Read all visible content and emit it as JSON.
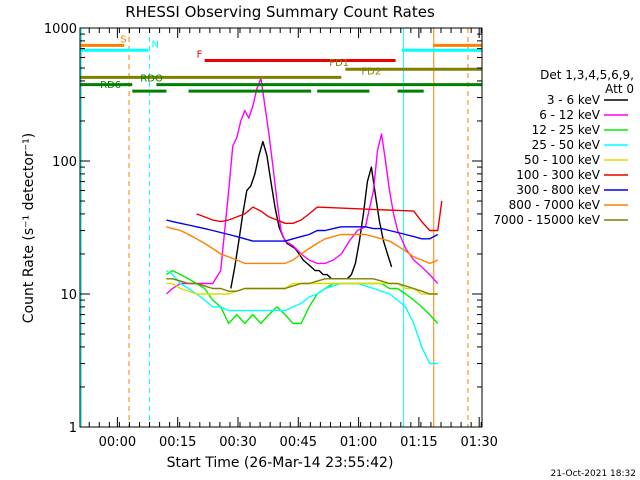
{
  "chart_data": {
    "type": "line",
    "title": "RHESSI Observing Summary Count Rates",
    "xlabel": "Start Time (26-Mar-14 23:55:42)",
    "ylabel": "Count Rate (s⁻¹ detector⁻¹)",
    "y_scale": "log",
    "ylim": [
      1,
      1000
    ],
    "xlim": [
      -5,
      95
    ],
    "x_unit": "minutes after 23:55:42",
    "y_ticks": [
      {
        "value": 1,
        "label": "1"
      },
      {
        "value": 10,
        "label": "10"
      },
      {
        "value": 100,
        "label": "100"
      },
      {
        "value": 1000,
        "label": "1000"
      }
    ],
    "x_ticks": [
      {
        "value": 4.3,
        "label": "00:00"
      },
      {
        "value": 19.3,
        "label": "00:15"
      },
      {
        "value": 34.3,
        "label": "00:30"
      },
      {
        "value": 49.3,
        "label": "00:45"
      },
      {
        "value": 64.3,
        "label": "01:00"
      },
      {
        "value": 79.3,
        "label": "01:15"
      },
      {
        "value": 94.3,
        "label": "01:30"
      }
    ],
    "legend": {
      "header": [
        "Det 1,3,4,5,6,9,",
        "Att 0"
      ],
      "placement": "right",
      "entries": [
        {
          "label": "3 - 6 keV",
          "color": "#000000"
        },
        {
          "label": "6 - 12 keV",
          "color": "#ff00ff"
        },
        {
          "label": "12 - 25 keV",
          "color": "#00ee00"
        },
        {
          "label": "25 - 50 keV",
          "color": "#00ffff"
        },
        {
          "label": "50 - 100 keV",
          "color": "#dddd00"
        },
        {
          "label": "100 - 300 keV",
          "color": "#ee0000"
        },
        {
          "label": "300 - 800 keV",
          "color": "#0000ee"
        },
        {
          "label": "800 - 7000 keV",
          "color": "#ff7f00"
        },
        {
          "label": "7000 - 15000 keV",
          "color": "#808000"
        }
      ]
    },
    "series": [
      {
        "name": "3 - 6 keV",
        "color": "#000000",
        "x": [
          32.5,
          33.5,
          34.5,
          35.5,
          36.5,
          37.5,
          38.5,
          39.5,
          40.5,
          41.5,
          42.5,
          43.5,
          44.5,
          45.5,
          46.5,
          47.5,
          48.5,
          49.5,
          50.5,
          51.5,
          52.5,
          53.5,
          54.5,
          55.5,
          56.5,
          57.5,
          58.5,
          59.5,
          60.5,
          61.5,
          62.5,
          63.5,
          64.5,
          65.5,
          66.5,
          67.5,
          68.5,
          69.5,
          70.5,
          71.5,
          72.5
        ],
        "y": [
          11,
          16,
          25,
          40,
          60,
          65,
          80,
          110,
          140,
          110,
          70,
          45,
          32,
          27,
          24,
          23,
          22,
          20,
          18,
          17,
          16,
          15,
          15,
          14,
          14,
          13,
          13,
          13,
          13,
          13,
          14,
          17,
          25,
          40,
          70,
          90,
          55,
          35,
          25,
          20,
          16
        ]
      },
      {
        "name": "6 - 12 keV",
        "color": "#ff00ff",
        "x": [
          16.5,
          18,
          20,
          22,
          24,
          26,
          28,
          30,
          31,
          32,
          33,
          34,
          35,
          36,
          37,
          38,
          39,
          40,
          41,
          42,
          43,
          44,
          45,
          46,
          47,
          48,
          50,
          52,
          54,
          56,
          58,
          60,
          62,
          64,
          66,
          68,
          69,
          70,
          71,
          72,
          73,
          74,
          75,
          76,
          78,
          80,
          82,
          84
        ],
        "y": [
          10,
          11,
          12,
          12,
          12,
          12,
          12,
          15,
          30,
          60,
          130,
          150,
          200,
          240,
          210,
          260,
          350,
          420,
          260,
          160,
          90,
          50,
          30,
          25,
          24,
          23,
          20,
          18,
          17,
          17,
          18,
          20,
          25,
          30,
          32,
          60,
          120,
          160,
          100,
          60,
          40,
          30,
          26,
          22,
          18,
          16,
          14,
          12
        ]
      },
      {
        "name": "12 - 25 keV",
        "color": "#00ee00",
        "x": [
          16.5,
          18,
          20,
          22,
          24,
          26,
          28,
          30,
          32,
          34,
          36,
          38,
          40,
          42,
          44,
          46,
          48,
          50,
          52,
          54,
          56,
          58,
          60,
          62,
          64,
          66,
          68,
          70,
          72,
          74,
          76,
          78,
          80,
          82,
          84
        ],
        "y": [
          14,
          15,
          14,
          13,
          12,
          11,
          9,
          8,
          6,
          7,
          6,
          7,
          6,
          7,
          8,
          7,
          6,
          6,
          8,
          10,
          11,
          12,
          12,
          12,
          12,
          12,
          12,
          12,
          11,
          11,
          10,
          9,
          8,
          7,
          6
        ]
      },
      {
        "name": "25 - 50 keV",
        "color": "#00ffff",
        "x": [
          16.5,
          18,
          20,
          22,
          24,
          26,
          28,
          30,
          32,
          34,
          36,
          38,
          40,
          42,
          44,
          46,
          48,
          50,
          52,
          54,
          56,
          58,
          60,
          62,
          64,
          66,
          68,
          70,
          72,
          74,
          76,
          78,
          80,
          82,
          84
        ],
        "y": [
          15,
          14,
          12,
          11,
          10,
          9,
          8,
          8,
          7.5,
          7.5,
          7.5,
          7.5,
          7.5,
          7.5,
          7.5,
          7.5,
          8,
          8.5,
          9.5,
          10,
          11,
          11.5,
          12,
          12,
          12,
          11.5,
          11,
          10.5,
          10,
          9,
          8,
          6,
          4,
          3,
          3
        ]
      },
      {
        "name": "50 - 100 keV",
        "color": "#dddd00",
        "x": [
          16.5,
          18,
          20,
          22,
          24,
          26,
          28,
          30,
          32,
          34,
          36,
          38,
          40,
          42,
          44,
          46,
          48,
          50,
          52,
          54,
          56,
          58,
          60,
          62,
          64,
          66,
          68,
          70,
          72,
          74,
          76,
          78,
          80,
          82,
          84
        ],
        "y": [
          12,
          12,
          11,
          10.5,
          10,
          10,
          10,
          10,
          10,
          10.5,
          11,
          11,
          11,
          11,
          11,
          11,
          12,
          12,
          12,
          12,
          12,
          12,
          12,
          12,
          12,
          12,
          12,
          12,
          12,
          12,
          11,
          11,
          10,
          10,
          10
        ]
      },
      {
        "name": "100 - 300 keV",
        "color": "#ee0000",
        "x": [
          24,
          26,
          28,
          30,
          32,
          34,
          36,
          38,
          40,
          42,
          44,
          46,
          48,
          50,
          52,
          54,
          78,
          80,
          82,
          84,
          85
        ],
        "y": [
          40,
          38,
          36,
          35,
          36,
          38,
          40,
          45,
          42,
          38,
          36,
          34,
          34,
          36,
          40,
          45,
          42,
          35,
          30,
          30,
          50
        ]
      },
      {
        "name": "300 - 800 keV",
        "color": "#0000ee",
        "x": [
          16.5,
          18,
          20,
          22,
          24,
          26,
          28,
          30,
          32,
          34,
          36,
          38,
          40,
          42,
          44,
          46,
          48,
          50,
          52,
          54,
          56,
          58,
          60,
          62,
          64,
          66,
          68,
          70,
          72,
          74,
          76,
          78,
          80,
          82,
          84
        ],
        "y": [
          36,
          35,
          34,
          33,
          32,
          31,
          30,
          29,
          28,
          27,
          26,
          25,
          25,
          25,
          25,
          25,
          26,
          27,
          28,
          30,
          30,
          31,
          32,
          32,
          32,
          32,
          31,
          31,
          30,
          29,
          28,
          27,
          26,
          26,
          28
        ]
      },
      {
        "name": "800 - 7000 keV",
        "color": "#ff7f00",
        "x": [
          16.5,
          18,
          20,
          22,
          24,
          26,
          28,
          30,
          32,
          34,
          36,
          38,
          40,
          42,
          44,
          46,
          48,
          50,
          52,
          54,
          56,
          58,
          60,
          62,
          64,
          66,
          68,
          70,
          72,
          74,
          76,
          78,
          80,
          82,
          84
        ],
        "y": [
          32,
          31,
          30,
          28,
          26,
          24,
          22,
          20,
          19,
          18,
          17,
          17,
          17,
          17,
          17,
          17,
          18,
          20,
          22,
          24,
          26,
          27,
          28,
          28,
          28,
          28,
          27,
          26,
          25,
          23,
          21,
          19,
          18,
          17,
          18
        ]
      },
      {
        "name": "7000 - 15000 keV",
        "color": "#808000",
        "x": [
          16.5,
          18,
          20,
          22,
          24,
          26,
          28,
          30,
          32,
          34,
          36,
          38,
          40,
          42,
          44,
          46,
          48,
          50,
          52,
          54,
          56,
          58,
          60,
          62,
          64,
          66,
          68,
          70,
          72,
          74,
          76,
          78,
          80,
          82,
          84
        ],
        "y": [
          13,
          13,
          12.5,
          12,
          12,
          11.5,
          11,
          11,
          10.5,
          10.5,
          11,
          11,
          11,
          11,
          11,
          11,
          11.5,
          12,
          12,
          12.5,
          13,
          13,
          13,
          13,
          13,
          13,
          13,
          12.5,
          12,
          12,
          11.5,
          11,
          10.5,
          10,
          10
        ]
      }
    ],
    "flags": [
      {
        "label": "S",
        "color": "#ff7f00",
        "y": 740,
        "segments": [
          [
            -5,
            6
          ],
          [
            83,
            95
          ]
        ]
      },
      {
        "label": "N",
        "color": "#00ffff",
        "y": 680,
        "segments": [
          [
            -5,
            12
          ],
          [
            75,
            95
          ]
        ]
      },
      {
        "label": "F",
        "color": "#ee0000",
        "y": 570,
        "segments": [
          [
            26,
            73.5
          ]
        ]
      },
      {
        "label": "FD1",
        "color": "#808000",
        "y": 490,
        "segments": [
          [
            61,
            95
          ]
        ]
      },
      {
        "label": "FD2",
        "color": "#808000",
        "y": 425,
        "segments": [
          [
            -5,
            60
          ]
        ]
      },
      {
        "label": "RDO",
        "color": "#008000",
        "y": 375,
        "segments": [
          [
            -5,
            8
          ],
          [
            14,
            95
          ]
        ]
      },
      {
        "label": "RD6",
        "color": "#008000",
        "y": 335,
        "segments": [
          [
            8,
            16.5
          ],
          [
            22,
            52.5
          ],
          [
            54,
            67
          ],
          [
            74,
            80.5
          ]
        ]
      }
    ],
    "vlines": [
      {
        "x": -4.7,
        "color": "#00ffff",
        "dash": false
      },
      {
        "x": 7.2,
        "color": "#ff7f00",
        "dash": true
      },
      {
        "x": 12.3,
        "color": "#00ffff",
        "dash": true
      },
      {
        "x": 75.5,
        "color": "#00ffff",
        "dash": false
      },
      {
        "x": 83,
        "color": "#ff7f00",
        "dash": false
      },
      {
        "x": 91.5,
        "color": "#ff7f00",
        "dash": true
      }
    ],
    "footer": "21-Oct-2021 18:32"
  }
}
